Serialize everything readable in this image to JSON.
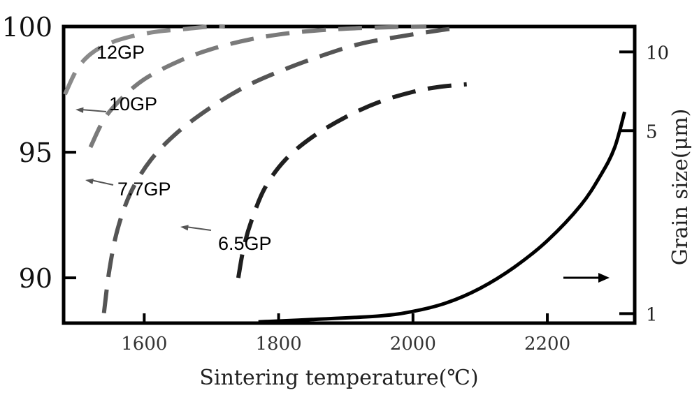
{
  "chart_data": {
    "type": "line",
    "xlabel": "Sintering temperature(℃)",
    "ylabel_right": "Grain size(μm)",
    "ylabel_left": "",
    "xlim": [
      1480,
      2330
    ],
    "ylim_left": [
      88.2,
      100
    ],
    "ylim_right_log": [
      0.92,
      12.5
    ],
    "x_ticks": [
      1600,
      1800,
      2000,
      2200
    ],
    "y_left_ticks": [
      90,
      95,
      100
    ],
    "y_right_ticks": [
      1,
      5,
      10
    ],
    "tick_labels": {
      "x": [
        "1600",
        "1800",
        "2000",
        "2200"
      ],
      "y_left": [
        "90",
        "95",
        "100"
      ],
      "y_right": [
        "1",
        "5",
        "10"
      ]
    },
    "series": [
      {
        "name": "12GP",
        "axis": "left",
        "style": "dashed",
        "x": [
          1482,
          1500,
          1520,
          1545,
          1580,
          1620,
          1660,
          1700,
          1720
        ],
        "y": [
          97.3,
          98.3,
          98.9,
          99.3,
          99.6,
          99.8,
          99.9,
          100,
          100
        ]
      },
      {
        "name": "10GP",
        "axis": "left",
        "style": "dashed",
        "x": [
          1520,
          1540,
          1565,
          1600,
          1650,
          1700,
          1760,
          1820,
          1890,
          1960,
          2020
        ],
        "y": [
          95.2,
          96.3,
          97.1,
          97.9,
          98.6,
          99.1,
          99.5,
          99.75,
          99.9,
          99.97,
          100
        ]
      },
      {
        "name": "7.7GP",
        "axis": "left",
        "style": "dashed",
        "x": [
          1540,
          1548,
          1560,
          1580,
          1610,
          1650,
          1700,
          1750,
          1800,
          1860,
          1920,
          1980,
          2040,
          2070
        ],
        "y": [
          88.6,
          90.3,
          91.9,
          93.4,
          94.7,
          95.8,
          96.8,
          97.6,
          98.2,
          98.8,
          99.3,
          99.6,
          99.85,
          99.95
        ]
      },
      {
        "name": "6.5GP",
        "axis": "left",
        "style": "dashed",
        "x": [
          1740,
          1748,
          1760,
          1780,
          1810,
          1850,
          1900,
          1950,
          2000,
          2040,
          2080
        ],
        "y": [
          90.0,
          91.2,
          92.3,
          93.6,
          94.7,
          95.6,
          96.4,
          97.0,
          97.4,
          97.6,
          97.7
        ]
      },
      {
        "name": "Grain size",
        "axis": "right",
        "style": "solid",
        "x": [
          1770,
          1850,
          1950,
          2000,
          2050,
          2100,
          2150,
          2200,
          2250,
          2280,
          2300,
          2315
        ],
        "y": [
          0.93,
          0.95,
          0.98,
          1.02,
          1.1,
          1.25,
          1.5,
          1.9,
          2.6,
          3.4,
          4.3,
          5.9
        ]
      }
    ],
    "annotations": [
      {
        "text": "12GP",
        "series": "12GP"
      },
      {
        "text": "10GP",
        "series": "10GP"
      },
      {
        "text": "7.7GP",
        "series": "7.7GP"
      },
      {
        "text": "6.5GP",
        "series": "6.5GP"
      },
      {
        "text": "",
        "arrow": "right",
        "series": "Grain size"
      }
    ],
    "grid": false,
    "legend": "none"
  }
}
